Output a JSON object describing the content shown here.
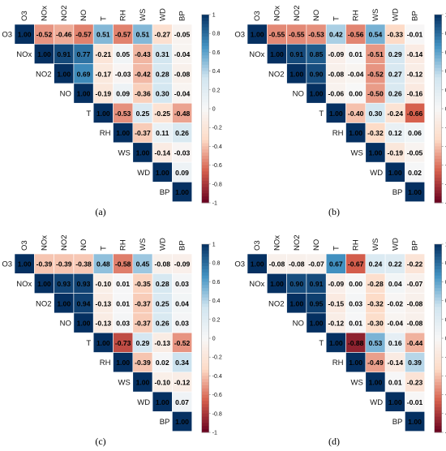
{
  "figure": {
    "panels": [
      {
        "label": "(a)"
      },
      {
        "label": "(b)"
      },
      {
        "label": "(c)"
      },
      {
        "label": "(d)"
      }
    ]
  },
  "chart_data": [
    {
      "type": "heatmap",
      "variables": [
        "O3",
        "NOx",
        "NO2",
        "NO",
        "T",
        "RH",
        "WS",
        "WD",
        "BP"
      ],
      "colorbar_ticks": [
        "1",
        "0.8",
        "0.6",
        "0.4",
        "0.2",
        "0",
        "-0.2",
        "-0.4",
        "-0.6",
        "-0.8",
        "-1"
      ],
      "color_scale": {
        "min": -1,
        "max": 1,
        "negative": "#67001f",
        "zero": "#f7f7f7",
        "positive": "#053061"
      },
      "matrix": [
        [
          1.0,
          -0.52,
          -0.46,
          -0.57,
          0.51,
          -0.57,
          0.51,
          -0.27,
          -0.05
        ],
        [
          null,
          1.0,
          0.91,
          0.77,
          -0.21,
          0.05,
          -0.43,
          0.31,
          -0.04
        ],
        [
          null,
          null,
          1.0,
          0.69,
          -0.17,
          -0.03,
          -0.42,
          0.28,
          -0.08
        ],
        [
          null,
          null,
          null,
          1.0,
          -0.19,
          0.09,
          -0.36,
          0.3,
          -0.04
        ],
        [
          null,
          null,
          null,
          null,
          1.0,
          -0.53,
          0.25,
          -0.25,
          -0.48
        ],
        [
          null,
          null,
          null,
          null,
          null,
          1.0,
          -0.37,
          0.11,
          0.26
        ],
        [
          null,
          null,
          null,
          null,
          null,
          null,
          1.0,
          -0.14,
          -0.03
        ],
        [
          null,
          null,
          null,
          null,
          null,
          null,
          null,
          1.0,
          0.09
        ],
        [
          null,
          null,
          null,
          null,
          null,
          null,
          null,
          null,
          1.0
        ]
      ]
    },
    {
      "type": "heatmap",
      "variables": [
        "O3",
        "NOx",
        "NO2",
        "NO",
        "T",
        "RH",
        "WS",
        "WD",
        "BP"
      ],
      "colorbar_ticks": [
        "1",
        "0.8",
        "0.6",
        "0.4",
        "0.2",
        "0",
        "-0.2",
        "-0.4",
        "-0.6",
        "-0.8",
        "-1"
      ],
      "color_scale": {
        "min": -1,
        "max": 1,
        "negative": "#67001f",
        "zero": "#f7f7f7",
        "positive": "#053061"
      },
      "matrix": [
        [
          1.0,
          -0.55,
          -0.55,
          -0.53,
          0.42,
          -0.56,
          0.54,
          -0.33,
          -0.01
        ],
        [
          null,
          1.0,
          0.91,
          0.85,
          -0.09,
          0.01,
          -0.51,
          0.29,
          -0.14
        ],
        [
          null,
          null,
          1.0,
          0.9,
          -0.08,
          -0.04,
          -0.52,
          0.27,
          -0.12
        ],
        [
          null,
          null,
          null,
          1.0,
          -0.06,
          0.0,
          -0.5,
          0.26,
          -0.16
        ],
        [
          null,
          null,
          null,
          null,
          1.0,
          -0.4,
          0.3,
          -0.24,
          -0.66
        ],
        [
          null,
          null,
          null,
          null,
          null,
          1.0,
          -0.32,
          0.12,
          0.06
        ],
        [
          null,
          null,
          null,
          null,
          null,
          null,
          1.0,
          -0.19,
          -0.05
        ],
        [
          null,
          null,
          null,
          null,
          null,
          null,
          null,
          1.0,
          0.02
        ],
        [
          null,
          null,
          null,
          null,
          null,
          null,
          null,
          null,
          1.0
        ]
      ]
    },
    {
      "type": "heatmap",
      "variables": [
        "O3",
        "NOx",
        "NO2",
        "NO",
        "T",
        "RH",
        "WS",
        "WD",
        "BP"
      ],
      "colorbar_ticks": [
        "1",
        "0.8",
        "0.6",
        "0.4",
        "0.2",
        "0",
        "-0.2",
        "-0.4",
        "-0.6",
        "-0.8",
        "-1"
      ],
      "color_scale": {
        "min": -1,
        "max": 1,
        "negative": "#67001f",
        "zero": "#f7f7f7",
        "positive": "#053061"
      },
      "matrix": [
        [
          1.0,
          -0.39,
          -0.39,
          -0.38,
          0.48,
          -0.58,
          0.45,
          -0.08,
          -0.09
        ],
        [
          null,
          1.0,
          0.93,
          0.93,
          -0.1,
          0.01,
          -0.35,
          0.28,
          0.03
        ],
        [
          null,
          null,
          1.0,
          0.94,
          -0.13,
          0.01,
          -0.37,
          0.25,
          0.04
        ],
        [
          null,
          null,
          null,
          1.0,
          -0.13,
          0.03,
          -0.37,
          0.26,
          0.03
        ],
        [
          null,
          null,
          null,
          null,
          1.0,
          -0.73,
          0.29,
          -0.13,
          -0.52
        ],
        [
          null,
          null,
          null,
          null,
          null,
          1.0,
          -0.39,
          0.02,
          0.34
        ],
        [
          null,
          null,
          null,
          null,
          null,
          null,
          1.0,
          -0.1,
          -0.12
        ],
        [
          null,
          null,
          null,
          null,
          null,
          null,
          null,
          1.0,
          0.07
        ],
        [
          null,
          null,
          null,
          null,
          null,
          null,
          null,
          null,
          1.0
        ]
      ]
    },
    {
      "type": "heatmap",
      "variables": [
        "O3",
        "NOx",
        "NO2",
        "NO",
        "T",
        "RH",
        "WS",
        "WD",
        "BP"
      ],
      "colorbar_ticks": [
        "1",
        "0.8",
        "0.6",
        "0.4",
        "0.2",
        "0",
        "-0.2",
        "-0.4",
        "-0.6",
        "-0.8",
        "-1"
      ],
      "color_scale": {
        "min": -1,
        "max": 1,
        "negative": "#67001f",
        "zero": "#f7f7f7",
        "positive": "#053061"
      },
      "matrix": [
        [
          1.0,
          -0.08,
          -0.08,
          -0.07,
          0.67,
          -0.67,
          0.24,
          0.22,
          -0.22
        ],
        [
          null,
          1.0,
          0.9,
          0.91,
          -0.09,
          0.0,
          -0.28,
          0.04,
          -0.07
        ],
        [
          null,
          null,
          1.0,
          0.95,
          -0.15,
          0.03,
          -0.32,
          -0.02,
          -0.08
        ],
        [
          null,
          null,
          null,
          1.0,
          -0.12,
          0.01,
          -0.3,
          -0.04,
          -0.08
        ],
        [
          null,
          null,
          null,
          null,
          1.0,
          -0.88,
          0.53,
          0.16,
          -0.44
        ],
        [
          null,
          null,
          null,
          null,
          null,
          1.0,
          -0.49,
          -0.14,
          0.39
        ],
        [
          null,
          null,
          null,
          null,
          null,
          null,
          1.0,
          0.01,
          -0.23
        ],
        [
          null,
          null,
          null,
          null,
          null,
          null,
          null,
          1.0,
          -0.01
        ],
        [
          null,
          null,
          null,
          null,
          null,
          null,
          null,
          null,
          1.0
        ]
      ]
    }
  ]
}
